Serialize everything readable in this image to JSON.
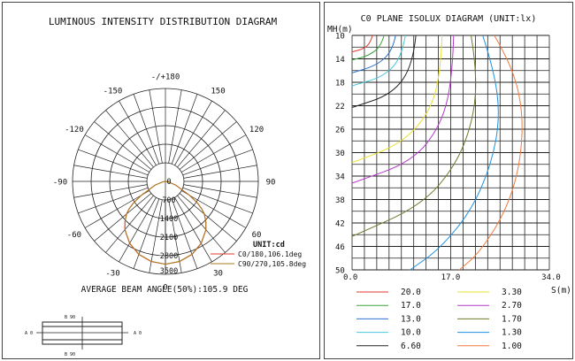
{
  "chart_data": [
    {
      "type": "polar",
      "title": "LUMINOUS INTENSITY DISTRIBUTION DIAGRAM",
      "unit_label": "UNIT:cd",
      "angle_labels": [
        "-/+180",
        "150",
        "120",
        "90",
        "60",
        "30",
        "0",
        "-30",
        "-60",
        "-90",
        "-120",
        "-150"
      ],
      "angle_values": [
        180,
        150,
        120,
        90,
        60,
        30,
        0,
        -30,
        -60,
        -90,
        -120,
        -150
      ],
      "radial_ticks": [
        "0",
        "700",
        "1400",
        "2100",
        "2800",
        "3500"
      ],
      "radial_values": [
        0,
        700,
        1400,
        2100,
        2800,
        3500
      ],
      "rmax": 3500,
      "series": [
        {
          "name": "C0/180,106.1deg",
          "color": "#e03a2c",
          "angles": [
            0,
            10,
            20,
            30,
            40,
            45,
            50,
            53,
            56,
            60,
            70,
            80,
            90
          ],
          "values": [
            3120,
            3070,
            2930,
            2700,
            2380,
            2160,
            1920,
            1720,
            1460,
            1050,
            420,
            110,
            0
          ]
        },
        {
          "name": "C90/270,105.8deg",
          "color": "#a87a1c",
          "angles": [
            0,
            10,
            20,
            30,
            40,
            45,
            50,
            53,
            56,
            60,
            70,
            80,
            90
          ],
          "values": [
            3120,
            3060,
            2920,
            2690,
            2370,
            2150,
            1905,
            1700,
            1440,
            1030,
            410,
            100,
            0
          ]
        }
      ],
      "beam_angle_text": "AVERAGE BEAM ANGLE(50%):105.9 DEG"
    },
    {
      "type": "contour",
      "title": "C0 PLANE ISOLUX DIAGRAM (UNIT:lx)",
      "ylabel": "MH(m)",
      "xlabel": "S(m)",
      "y_ticks": [
        "10",
        "14",
        "18",
        "22",
        "26",
        "30",
        "34",
        "38",
        "42",
        "46",
        "50"
      ],
      "x_ticks": [
        "0.0",
        "17.0",
        "34.0"
      ],
      "ylim": [
        10,
        50
      ],
      "xlim": [
        0,
        34
      ],
      "grid": true,
      "levels": [
        {
          "value": "20.0",
          "color": "#e03a2c"
        },
        {
          "value": "17.0",
          "color": "#3aa33a"
        },
        {
          "value": "13.0",
          "color": "#2a6fd0"
        },
        {
          "value": "10.0",
          "color": "#46c8dc"
        },
        {
          "value": "6.60",
          "color": "#222222"
        },
        {
          "value": "3.30",
          "color": "#e8e02a"
        },
        {
          "value": "2.70",
          "color": "#b23ac8"
        },
        {
          "value": "1.70",
          "color": "#6a7a2a"
        },
        {
          "value": "1.30",
          "color": "#1d8fe0"
        },
        {
          "value": "1.00",
          "color": "#f07a40"
        }
      ],
      "contours": [
        {
          "color": "#e03a2c",
          "points": [
            [
              3.5,
              10
            ],
            [
              3.2,
              11.2
            ],
            [
              2,
              12.3
            ],
            [
              0,
              12.8
            ]
          ]
        },
        {
          "color": "#3aa33a",
          "points": [
            [
              5.5,
              10
            ],
            [
              5,
              11.8
            ],
            [
              3,
              13.4
            ],
            [
              0,
              14.2
            ]
          ]
        },
        {
          "color": "#2a6fd0",
          "points": [
            [
              7.5,
              10
            ],
            [
              7,
              12.5
            ],
            [
              4.5,
              15
            ],
            [
              0,
              16.4
            ]
          ]
        },
        {
          "color": "#46c8dc",
          "points": [
            [
              9.2,
              10
            ],
            [
              8.5,
              13.8
            ],
            [
              5.5,
              17
            ],
            [
              0,
              18.6
            ]
          ]
        },
        {
          "color": "#222222",
          "points": [
            [
              11,
              10
            ],
            [
              10.5,
              15
            ],
            [
              7,
              20
            ],
            [
              0,
              22.3
            ]
          ]
        },
        {
          "color": "#e8e02a",
          "points": [
            [
              15.5,
              10
            ],
            [
              15.3,
              16
            ],
            [
              13.5,
              23
            ],
            [
              8.5,
              28.5
            ],
            [
              0,
              31.7
            ]
          ]
        },
        {
          "color": "#b23ac8",
          "points": [
            [
              17.5,
              10
            ],
            [
              17.3,
              17
            ],
            [
              15.5,
              25
            ],
            [
              10.5,
              31.5
            ],
            [
              0,
              35.2
            ]
          ]
        },
        {
          "color": "#6a7a2a",
          "points": [
            [
              20.5,
              10
            ],
            [
              21.5,
              16
            ],
            [
              21,
              24
            ],
            [
              18,
              32
            ],
            [
              12,
              39
            ],
            [
              0,
              44.3
            ]
          ]
        },
        {
          "color": "#1d8fe0",
          "points": [
            [
              22.5,
              10
            ],
            [
              24.5,
              16
            ],
            [
              25.5,
              24
            ],
            [
              24,
              32
            ],
            [
              20.5,
              40
            ],
            [
              15,
              46.5
            ],
            [
              10,
              50
            ]
          ]
        },
        {
          "color": "#f07a40",
          "points": [
            [
              24.5,
              10
            ],
            [
              27.5,
              15
            ],
            [
              29.5,
              23
            ],
            [
              29,
              32
            ],
            [
              26.5,
              40
            ],
            [
              22,
              47
            ],
            [
              18.5,
              50
            ]
          ]
        }
      ]
    }
  ]
}
